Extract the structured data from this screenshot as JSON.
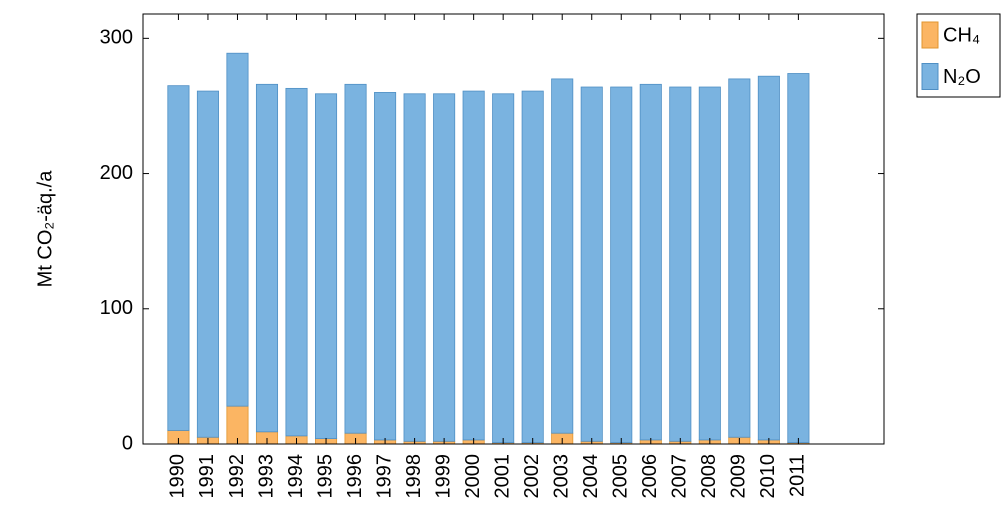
{
  "chart_data": {
    "type": "stacked_bar",
    "y_label": "Mt CO₂-äq./a",
    "categories": [
      "1990",
      "1991",
      "1992",
      "1993",
      "1994",
      "1995",
      "1996",
      "1997",
      "1998",
      "1999",
      "2000",
      "2001",
      "2002",
      "2003",
      "2004",
      "2005",
      "2006",
      "2007",
      "2008",
      "2009",
      "2010",
      "2011"
    ],
    "series": [
      {
        "name": "CH₄",
        "color": "#fbb563",
        "values": [
          10,
          5,
          28,
          9,
          6,
          4,
          8,
          3,
          2,
          2,
          3,
          1,
          1,
          8,
          2,
          1,
          3,
          2,
          3,
          5,
          3,
          1
        ]
      },
      {
        "name": "N₂O",
        "color": "#7ab3e0",
        "values": [
          255,
          256,
          261,
          257,
          257,
          255,
          258,
          257,
          257,
          257,
          258,
          258,
          260,
          262,
          262,
          263,
          263,
          262,
          261,
          265,
          269,
          273
        ]
      }
    ],
    "ylim": [
      0,
      318
    ],
    "yticks": [
      0,
      100,
      200,
      300
    ],
    "grid": false,
    "legend": "outside-top-right"
  }
}
